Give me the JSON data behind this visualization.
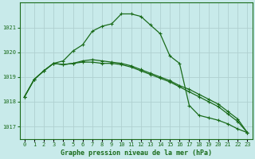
{
  "title": "Graphe pression niveau de la mer (hPa)",
  "background_color": "#c8eaea",
  "grid_color": "#b0d0d0",
  "line_color": "#1a6b1a",
  "x_labels": [
    "0",
    "1",
    "2",
    "3",
    "4",
    "5",
    "6",
    "7",
    "8",
    "9",
    "10",
    "11",
    "12",
    "13",
    "14",
    "15",
    "16",
    "17",
    "18",
    "19",
    "20",
    "21",
    "22",
    "23"
  ],
  "xlim": [
    -0.5,
    23.5
  ],
  "ylim": [
    1016.5,
    1022.0
  ],
  "yticks": [
    1017,
    1018,
    1019,
    1020,
    1021
  ],
  "series1": [
    1018.2,
    1018.9,
    1019.25,
    1019.55,
    1019.65,
    1020.05,
    1020.3,
    1020.85,
    1021.05,
    1021.15,
    1021.55,
    1021.55,
    1021.45,
    1021.1,
    1020.75,
    1019.85,
    1019.55,
    1017.85,
    1017.45,
    1017.35,
    1017.25,
    1017.1,
    1016.9,
    1016.75
  ],
  "series2": [
    1018.2,
    1018.9,
    1019.25,
    1019.55,
    1019.5,
    1019.55,
    1019.65,
    1019.7,
    1019.65,
    1019.6,
    1019.55,
    1019.45,
    1019.3,
    1019.15,
    1019.0,
    1018.85,
    1018.65,
    1018.5,
    1018.3,
    1018.1,
    1017.9,
    1017.6,
    1017.3,
    1016.75
  ],
  "series3": [
    1018.2,
    1018.9,
    1019.25,
    1019.55,
    1019.5,
    1019.55,
    1019.6,
    1019.6,
    1019.55,
    1019.55,
    1019.5,
    1019.4,
    1019.25,
    1019.1,
    1018.95,
    1018.8,
    1018.6,
    1018.4,
    1018.2,
    1018.0,
    1017.8,
    1017.5,
    1017.2,
    1016.75
  ],
  "title_fontsize": 6.0,
  "tick_fontsize": 5.0
}
